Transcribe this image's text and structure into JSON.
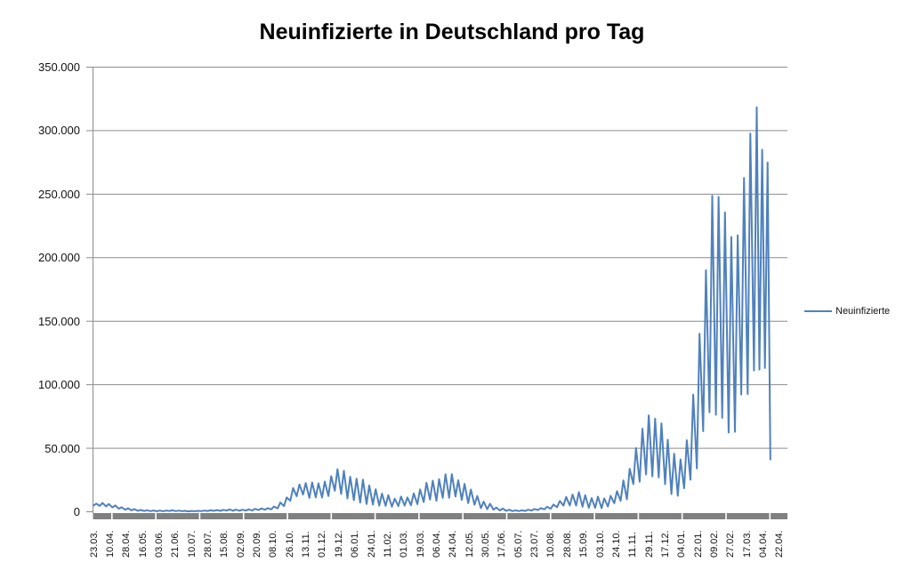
{
  "chart_data": {
    "type": "line",
    "title": "Neuinfizierte in Deutschland pro Tag",
    "legend": {
      "label": "Neuinfizierte",
      "position": "right"
    },
    "colors": {
      "series": "#4F81BD",
      "gridline": "#8C8C8C",
      "axis_band": "#808080",
      "tick_text": "#111111",
      "title_text": "#000000"
    },
    "ylim": [
      0,
      350000
    ],
    "y_tick_step": 50000,
    "grid": "horizontal gridlines every 50.000, thick gray band on zero axis",
    "y_tick_labels": [
      "350.000",
      "300.000",
      "250.000",
      "200.000",
      "150.000",
      "100.000",
      "50.000",
      "0"
    ],
    "x_tick_labels": [
      "23.03.",
      "10.04.",
      "28.04.",
      "16.05.",
      "03.06.",
      "21.06.",
      "10.07.",
      "28.07.",
      "15.08.",
      "02.09.",
      "20.09.",
      "08.10.",
      "26.10.",
      "13.11.",
      "01.12.",
      "19.12.",
      "06.01.",
      "24.01.",
      "11.02.",
      "01.03.",
      "19.03.",
      "06.04.",
      "24.04.",
      "12.05.",
      "30.05.",
      "17.06.",
      "05.07.",
      "23.07.",
      "10.08.",
      "28.08.",
      "15.09.",
      "03.10.",
      "24.10.",
      "11.11.",
      "29.11.",
      "17.12.",
      "04.01.",
      "22.01.",
      "09.02.",
      "27.02.",
      "17.03.",
      "04.04.",
      "22.04.",
      "x_index_unit: days since first category (23.03.)"
    ],
    "series": [
      {
        "name": "Neuinfizierte",
        "points": [
          [
            0,
            4900
          ],
          [
            3,
            6400
          ],
          [
            7,
            4600
          ],
          [
            10,
            6900
          ],
          [
            14,
            4200
          ],
          [
            17,
            6100
          ],
          [
            21,
            3400
          ],
          [
            24,
            5000
          ],
          [
            28,
            2400
          ],
          [
            31,
            3600
          ],
          [
            35,
            1600
          ],
          [
            38,
            2700
          ],
          [
            42,
            1100
          ],
          [
            45,
            2000
          ],
          [
            49,
            800
          ],
          [
            52,
            1400
          ],
          [
            56,
            600
          ],
          [
            59,
            1200
          ],
          [
            63,
            500
          ],
          [
            66,
            1000
          ],
          [
            70,
            400
          ],
          [
            73,
            900
          ],
          [
            77,
            400
          ],
          [
            80,
            900
          ],
          [
            84,
            600
          ],
          [
            87,
            1100
          ],
          [
            91,
            500
          ],
          [
            94,
            900
          ],
          [
            98,
            400
          ],
          [
            101,
            700
          ],
          [
            105,
            300
          ],
          [
            108,
            600
          ],
          [
            112,
            400
          ],
          [
            115,
            700
          ],
          [
            119,
            500
          ],
          [
            122,
            900
          ],
          [
            126,
            600
          ],
          [
            129,
            1100
          ],
          [
            133,
            700
          ],
          [
            136,
            1300
          ],
          [
            140,
            700
          ],
          [
            143,
            1500
          ],
          [
            147,
            900
          ],
          [
            150,
            1900
          ],
          [
            154,
            800
          ],
          [
            157,
            1700
          ],
          [
            161,
            800
          ],
          [
            164,
            1600
          ],
          [
            168,
            900
          ],
          [
            171,
            1900
          ],
          [
            175,
            1000
          ],
          [
            178,
            2300
          ],
          [
            182,
            1300
          ],
          [
            185,
            2600
          ],
          [
            189,
            1600
          ],
          [
            192,
            2800
          ],
          [
            196,
            1900
          ],
          [
            199,
            4100
          ],
          [
            203,
            2600
          ],
          [
            206,
            7300
          ],
          [
            210,
            4400
          ],
          [
            213,
            11300
          ],
          [
            217,
            8700
          ],
          [
            220,
            18700
          ],
          [
            224,
            12200
          ],
          [
            227,
            21500
          ],
          [
            231,
            13500
          ],
          [
            234,
            22600
          ],
          [
            238,
            10900
          ],
          [
            241,
            23100
          ],
          [
            245,
            11300
          ],
          [
            248,
            22400
          ],
          [
            252,
            11200
          ],
          [
            255,
            23800
          ],
          [
            259,
            12400
          ],
          [
            262,
            28000
          ],
          [
            266,
            16500
          ],
          [
            269,
            33500
          ],
          [
            273,
            14000
          ],
          [
            276,
            32300
          ],
          [
            280,
            10500
          ],
          [
            283,
            27600
          ],
          [
            287,
            9100
          ],
          [
            290,
            26100
          ],
          [
            294,
            7200
          ],
          [
            297,
            25300
          ],
          [
            301,
            6100
          ],
          [
            304,
            20700
          ],
          [
            308,
            5700
          ],
          [
            311,
            17700
          ],
          [
            315,
            4800
          ],
          [
            318,
            14300
          ],
          [
            322,
            4600
          ],
          [
            325,
            13000
          ],
          [
            329,
            4000
          ],
          [
            332,
            10300
          ],
          [
            336,
            4500
          ],
          [
            339,
            12000
          ],
          [
            343,
            4800
          ],
          [
            346,
            11300
          ],
          [
            350,
            5100
          ],
          [
            353,
            14400
          ],
          [
            357,
            6000
          ],
          [
            360,
            17600
          ],
          [
            364,
            7600
          ],
          [
            367,
            22800
          ],
          [
            371,
            9600
          ],
          [
            374,
            24400
          ],
          [
            378,
            8600
          ],
          [
            381,
            25600
          ],
          [
            385,
            10900
          ],
          [
            388,
            29500
          ],
          [
            392,
            11000
          ],
          [
            395,
            29600
          ],
          [
            399,
            12000
          ],
          [
            402,
            24800
          ],
          [
            406,
            9300
          ],
          [
            409,
            22000
          ],
          [
            413,
            6800
          ],
          [
            416,
            17500
          ],
          [
            420,
            5500
          ],
          [
            423,
            12400
          ],
          [
            427,
            2800
          ],
          [
            430,
            8000
          ],
          [
            434,
            2000
          ],
          [
            437,
            6300
          ],
          [
            441,
            1600
          ],
          [
            444,
            3300
          ],
          [
            448,
            1000
          ],
          [
            451,
            2500
          ],
          [
            455,
            700
          ],
          [
            458,
            1600
          ],
          [
            462,
            500
          ],
          [
            465,
            1100
          ],
          [
            469,
            500
          ],
          [
            472,
            1100
          ],
          [
            476,
            600
          ],
          [
            479,
            1600
          ],
          [
            483,
            1000
          ],
          [
            486,
            2200
          ],
          [
            490,
            1300
          ],
          [
            493,
            2900
          ],
          [
            497,
            1900
          ],
          [
            500,
            3900
          ],
          [
            504,
            2400
          ],
          [
            507,
            5700
          ],
          [
            511,
            3600
          ],
          [
            514,
            8500
          ],
          [
            518,
            4800
          ],
          [
            521,
            11700
          ],
          [
            525,
            4900
          ],
          [
            528,
            13600
          ],
          [
            532,
            4800
          ],
          [
            535,
            15500
          ],
          [
            539,
            4000
          ],
          [
            542,
            13000
          ],
          [
            546,
            3100
          ],
          [
            549,
            10800
          ],
          [
            553,
            3100
          ],
          [
            556,
            11900
          ],
          [
            560,
            2800
          ],
          [
            563,
            10500
          ],
          [
            567,
            4100
          ],
          [
            570,
            12500
          ],
          [
            574,
            6700
          ],
          [
            577,
            16200
          ],
          [
            581,
            8600
          ],
          [
            584,
            24700
          ],
          [
            588,
            9800
          ],
          [
            591,
            33900
          ],
          [
            595,
            21800
          ],
          [
            598,
            50100
          ],
          [
            602,
            23600
          ],
          [
            605,
            65400
          ],
          [
            609,
            29400
          ],
          [
            612,
            75900
          ],
          [
            616,
            27800
          ],
          [
            619,
            73200
          ],
          [
            623,
            27000
          ],
          [
            626,
            69600
          ],
          [
            630,
            21700
          ],
          [
            633,
            56700
          ],
          [
            637,
            13900
          ],
          [
            640,
            45700
          ],
          [
            644,
            12500
          ],
          [
            647,
            41200
          ],
          [
            651,
            18500
          ],
          [
            654,
            56300
          ],
          [
            658,
            25200
          ],
          [
            661,
            92200
          ],
          [
            665,
            34100
          ],
          [
            668,
            140200
          ],
          [
            672,
            63400
          ],
          [
            675,
            190100
          ],
          [
            679,
            78300
          ],
          [
            682,
            248800
          ],
          [
            686,
            76300
          ],
          [
            689,
            247900
          ],
          [
            693,
            73900
          ],
          [
            696,
            235600
          ],
          [
            700,
            62300
          ],
          [
            703,
            216300
          ],
          [
            707,
            62900
          ],
          [
            710,
            217600
          ],
          [
            714,
            92300
          ],
          [
            717,
            262800
          ],
          [
            721,
            92700
          ],
          [
            724,
            297800
          ],
          [
            728,
            111200
          ],
          [
            731,
            318400
          ],
          [
            734,
            111900
          ],
          [
            737,
            285000
          ],
          [
            740,
            113100
          ],
          [
            743,
            274900
          ],
          [
            746,
            41100
          ]
        ]
      }
    ]
  }
}
